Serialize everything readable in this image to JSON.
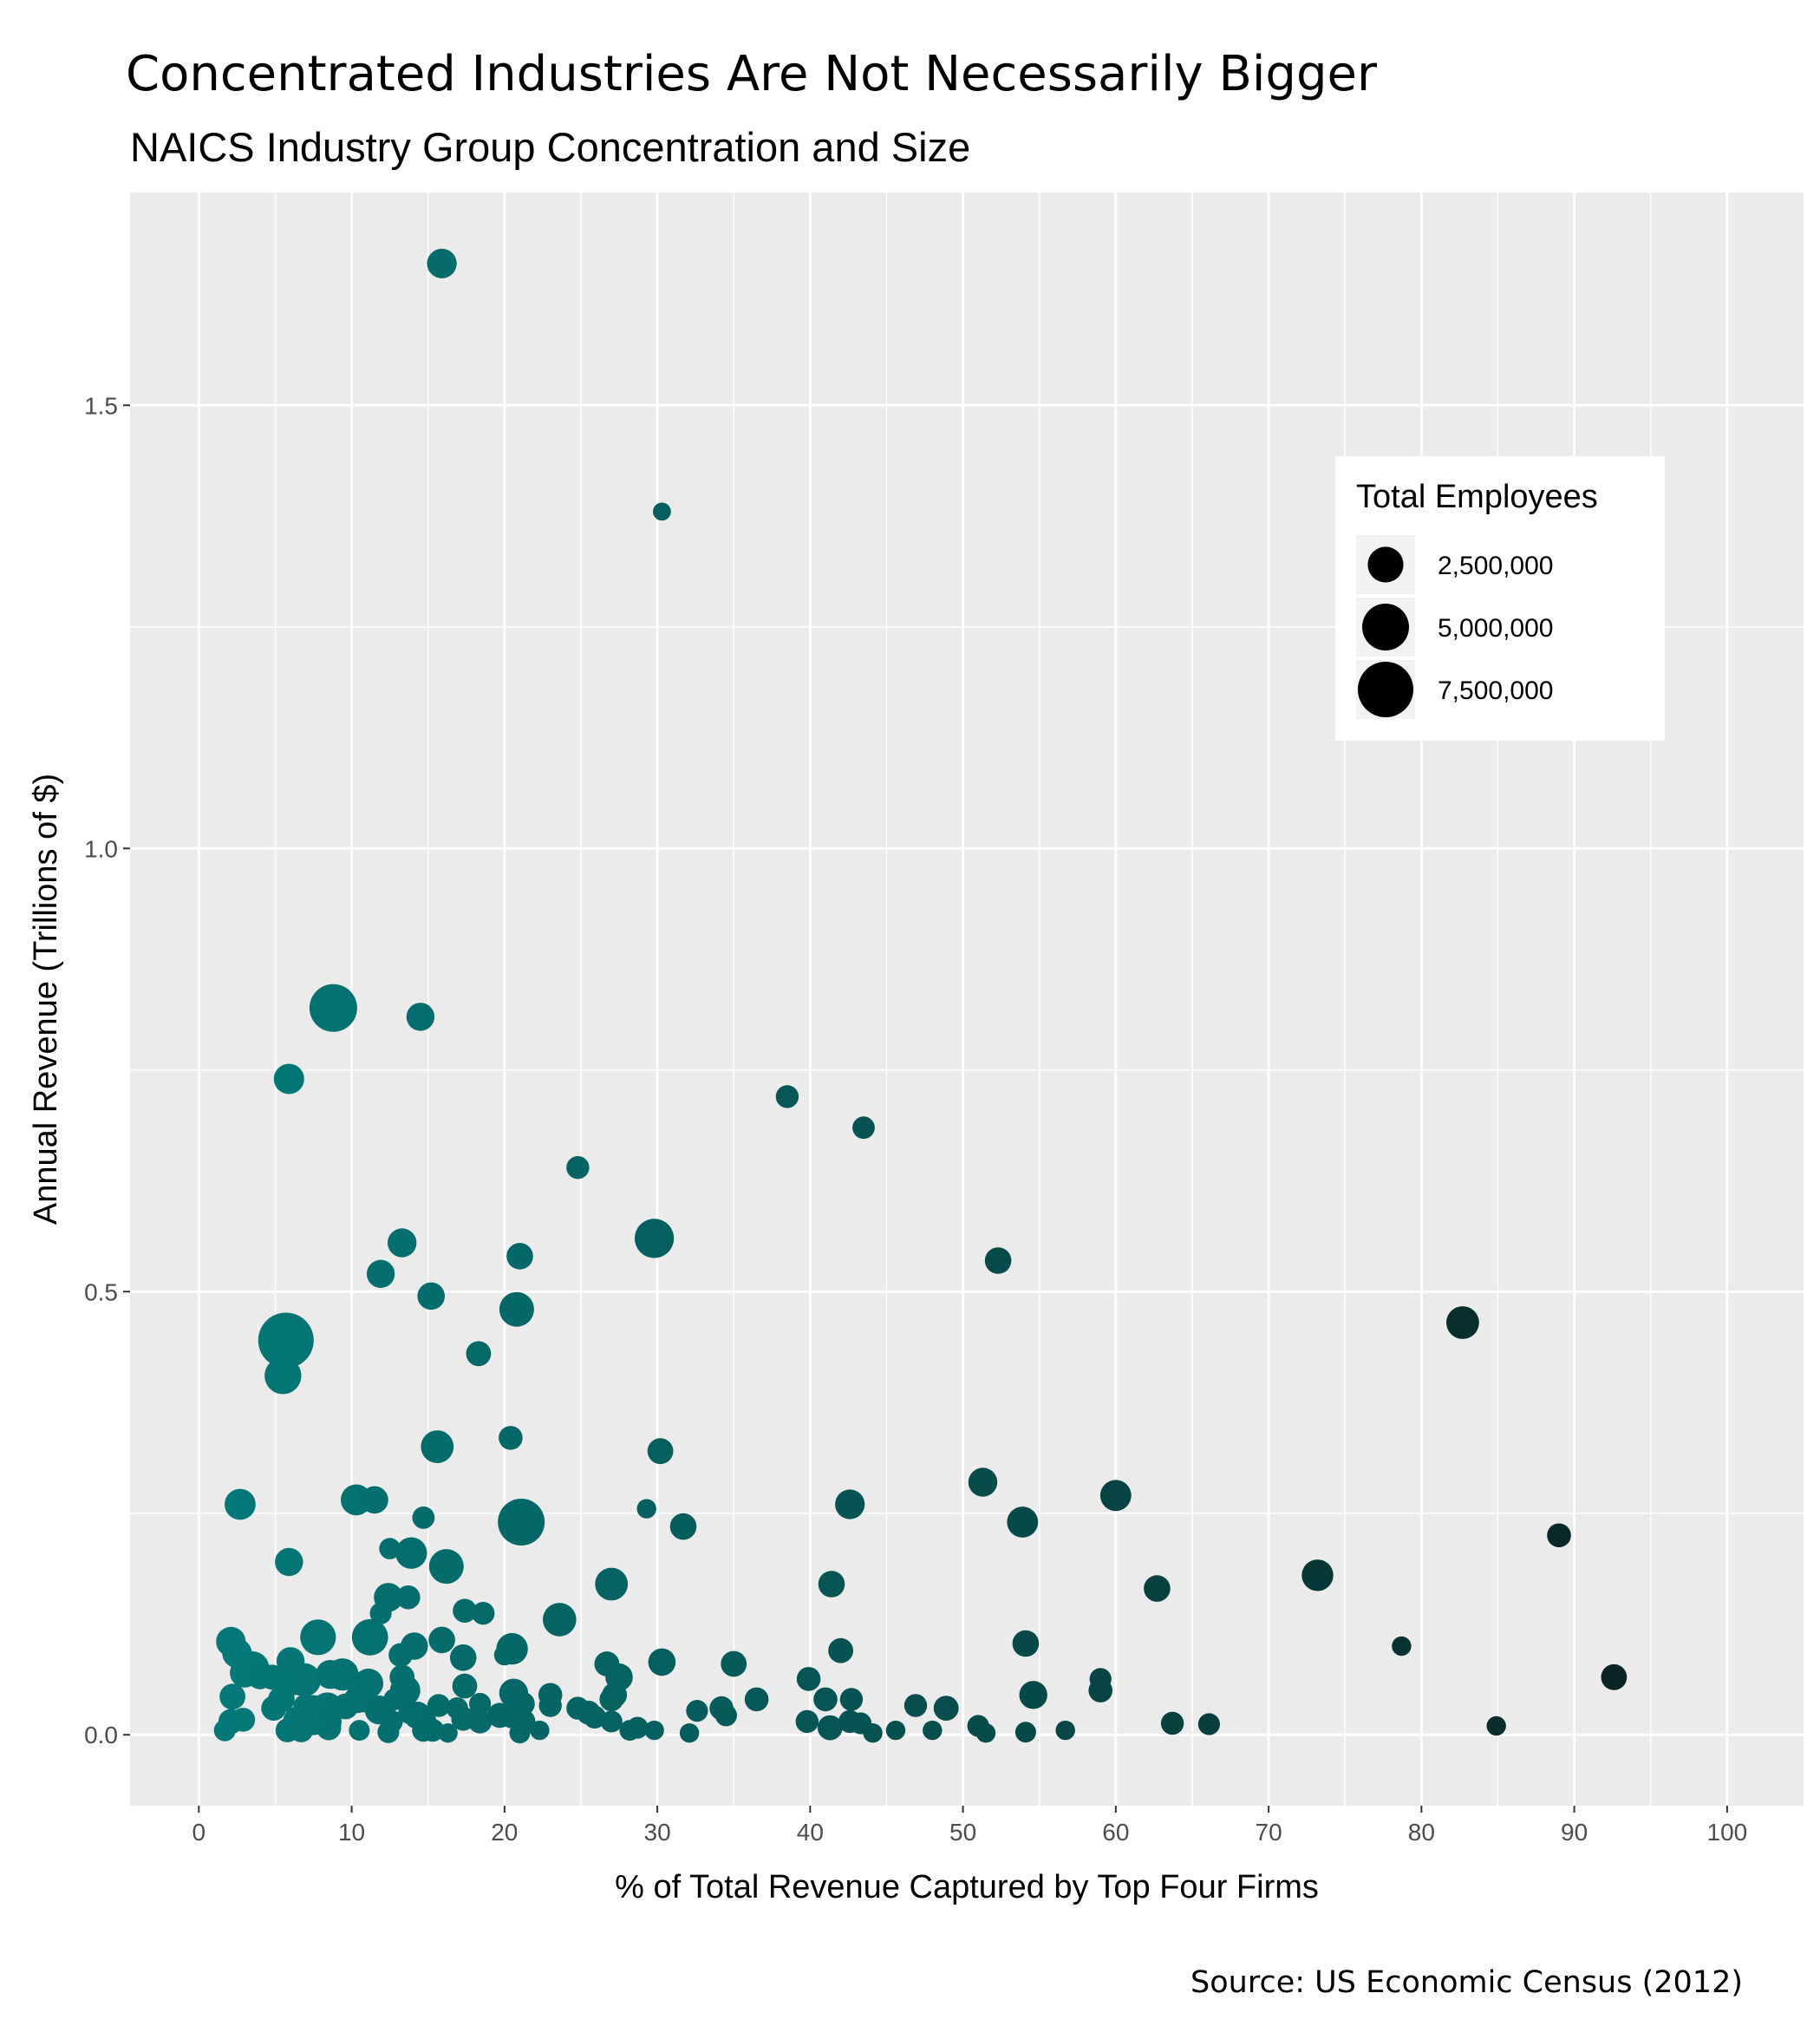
{
  "chart_data": {
    "type": "scatter",
    "title": "Concentrated Industries Are Not Necessarily Bigger",
    "subtitle": "NAICS Industry Group Concentration and Size",
    "xlabel": "% of Total Revenue Captured by Top Four Firms",
    "ylabel": "Annual Revenue (Trillions of $)",
    "caption": "Source: US Economic Census (2012)",
    "xlim": [
      -4.5,
      105
    ],
    "ylim": [
      -0.08,
      1.74
    ],
    "x_ticks": [
      0,
      10,
      20,
      30,
      40,
      50,
      60,
      70,
      80,
      90,
      100
    ],
    "x_tick_labels": [
      "0",
      "10",
      "20",
      "30",
      "40",
      "50",
      "60",
      "70",
      "80",
      "90",
      "100"
    ],
    "y_ticks": [
      0.0,
      0.5,
      1.0,
      1.5
    ],
    "y_tick_labels": [
      "0.0",
      "0.5",
      "1.0",
      "1.5"
    ],
    "grid": true,
    "background": "#ebebeb",
    "color_scale": {
      "low": "#047a7a",
      "high": "#0a1e1e",
      "by": "x"
    },
    "legend": {
      "title": "Total Employees",
      "position": "right-inside",
      "entries": [
        {
          "label": "2,500,000",
          "value": 2500000
        },
        {
          "label": "5,000,000",
          "value": 5000000
        },
        {
          "label": "7,500,000",
          "value": 7500000
        }
      ]
    },
    "points": [
      [
        15.9,
        1.66,
        1500000
      ],
      [
        30.3,
        1.38,
        300000
      ],
      [
        8.8,
        0.82,
        5200000
      ],
      [
        14.5,
        0.81,
        1300000
      ],
      [
        5.9,
        0.74,
        1600000
      ],
      [
        38.5,
        0.72,
        700000
      ],
      [
        43.5,
        0.685,
        650000
      ],
      [
        24.8,
        0.64,
        700000
      ],
      [
        29.8,
        0.56,
        3200000
      ],
      [
        13.3,
        0.555,
        1400000
      ],
      [
        21.0,
        0.54,
        1100000
      ],
      [
        52.3,
        0.535,
        1100000
      ],
      [
        11.9,
        0.52,
        1300000
      ],
      [
        15.2,
        0.495,
        1200000
      ],
      [
        20.8,
        0.48,
        2300000
      ],
      [
        82.7,
        0.465,
        2000000
      ],
      [
        5.7,
        0.445,
        7500000
      ],
      [
        18.3,
        0.43,
        900000
      ],
      [
        5.5,
        0.405,
        2700000
      ],
      [
        15.6,
        0.325,
        2000000
      ],
      [
        20.4,
        0.335,
        800000
      ],
      [
        30.2,
        0.32,
        1000000
      ],
      [
        51.3,
        0.285,
        1400000
      ],
      [
        60.0,
        0.27,
        1700000
      ],
      [
        2.7,
        0.26,
        1700000
      ],
      [
        10.3,
        0.265,
        1700000
      ],
      [
        11.5,
        0.265,
        1200000
      ],
      [
        42.6,
        0.26,
        1500000
      ],
      [
        29.3,
        0.255,
        400000
      ],
      [
        14.7,
        0.245,
        650000
      ],
      [
        21.1,
        0.24,
        5000000
      ],
      [
        53.9,
        0.24,
        1700000
      ],
      [
        31.7,
        0.235,
        1100000
      ],
      [
        89.0,
        0.225,
        800000
      ],
      [
        12.5,
        0.21,
        550000
      ],
      [
        13.9,
        0.205,
        1800000
      ],
      [
        5.9,
        0.195,
        1300000
      ],
      [
        16.2,
        0.19,
        2300000
      ],
      [
        73.2,
        0.18,
        1800000
      ],
      [
        27.0,
        0.17,
        2000000
      ],
      [
        41.4,
        0.17,
        1100000
      ],
      [
        62.7,
        0.165,
        1100000
      ],
      [
        12.4,
        0.155,
        1400000
      ],
      [
        13.7,
        0.155,
        800000
      ],
      [
        17.4,
        0.14,
        800000
      ],
      [
        18.6,
        0.137,
        700000
      ],
      [
        11.9,
        0.137,
        600000
      ],
      [
        23.6,
        0.13,
        2100000
      ],
      [
        7.8,
        0.11,
        2500000
      ],
      [
        11.2,
        0.11,
        2600000
      ],
      [
        2.1,
        0.105,
        1500000
      ],
      [
        14.1,
        0.1,
        1200000
      ],
      [
        15.9,
        0.107,
        1100000
      ],
      [
        20.5,
        0.097,
        1800000
      ],
      [
        20.0,
        0.09,
        500000
      ],
      [
        54.1,
        0.103,
        1100000
      ],
      [
        78.7,
        0.1,
        400000
      ],
      [
        2.5,
        0.092,
        1500000
      ],
      [
        42.0,
        0.095,
        900000
      ],
      [
        13.2,
        0.09,
        800000
      ],
      [
        17.3,
        0.087,
        1100000
      ],
      [
        6.0,
        0.083,
        1300000
      ],
      [
        30.3,
        0.082,
        1200000
      ],
      [
        35.0,
        0.08,
        1000000
      ],
      [
        26.7,
        0.08,
        900000
      ],
      [
        3.5,
        0.075,
        2200000
      ],
      [
        8.6,
        0.068,
        1400000
      ],
      [
        9.4,
        0.068,
        1900000
      ],
      [
        4.8,
        0.065,
        900000
      ],
      [
        6.9,
        0.062,
        2100000
      ],
      [
        6.2,
        0.06,
        1200000
      ],
      [
        27.5,
        0.065,
        1200000
      ],
      [
        39.9,
        0.063,
        800000
      ],
      [
        59.0,
        0.063,
        600000
      ],
      [
        92.6,
        0.065,
        1000000
      ],
      [
        11.1,
        0.058,
        1500000
      ],
      [
        13.5,
        0.05,
        1600000
      ],
      [
        13.3,
        0.065,
        900000
      ],
      [
        17.4,
        0.055,
        900000
      ],
      [
        20.6,
        0.047,
        1400000
      ],
      [
        23.0,
        0.045,
        800000
      ],
      [
        27.2,
        0.045,
        900000
      ],
      [
        54.6,
        0.045,
        1300000
      ],
      [
        59.0,
        0.05,
        800000
      ],
      [
        2.2,
        0.043,
        1000000
      ],
      [
        10.4,
        0.04,
        1200000
      ],
      [
        10.8,
        0.04,
        1000000
      ],
      [
        27.0,
        0.04,
        800000
      ],
      [
        41.0,
        0.04,
        800000
      ],
      [
        36.5,
        0.04,
        800000
      ],
      [
        42.7,
        0.04,
        700000
      ],
      [
        4.9,
        0.03,
        900000
      ],
      [
        8.4,
        0.03,
        1800000
      ],
      [
        7.5,
        0.028,
        1500000
      ],
      [
        11.8,
        0.028,
        1400000
      ],
      [
        12.0,
        0.028,
        1000000
      ],
      [
        15.7,
        0.033,
        700000
      ],
      [
        18.4,
        0.035,
        600000
      ],
      [
        21.2,
        0.035,
        800000
      ],
      [
        23.0,
        0.033,
        700000
      ],
      [
        24.8,
        0.03,
        700000
      ],
      [
        25.5,
        0.025,
        800000
      ],
      [
        34.2,
        0.03,
        800000
      ],
      [
        46.9,
        0.033,
        700000
      ],
      [
        48.9,
        0.03,
        900000
      ],
      [
        20.5,
        0.022,
        1000000
      ],
      [
        14.3,
        0.022,
        1200000
      ],
      [
        32.6,
        0.027,
        600000
      ],
      [
        34.5,
        0.022,
        600000
      ],
      [
        2.1,
        0.015,
        900000
      ],
      [
        2.9,
        0.017,
        800000
      ],
      [
        6.5,
        0.015,
        1600000
      ],
      [
        7.5,
        0.013,
        800000
      ],
      [
        8.5,
        0.015,
        1000000
      ],
      [
        12.6,
        0.015,
        700000
      ],
      [
        14.7,
        0.015,
        1000000
      ],
      [
        17.3,
        0.018,
        800000
      ],
      [
        18.4,
        0.015,
        800000
      ],
      [
        21.2,
        0.015,
        900000
      ],
      [
        25.9,
        0.02,
        700000
      ],
      [
        27.0,
        0.015,
        600000
      ],
      [
        39.8,
        0.015,
        700000
      ],
      [
        41.3,
        0.008,
        900000
      ],
      [
        42.6,
        0.015,
        700000
      ],
      [
        43.3,
        0.013,
        600000
      ],
      [
        51.0,
        0.01,
        600000
      ],
      [
        63.7,
        0.013,
        700000
      ],
      [
        66.1,
        0.012,
        600000
      ],
      [
        84.9,
        0.01,
        400000
      ],
      [
        1.7,
        0.005,
        600000
      ],
      [
        5.8,
        0.005,
        800000
      ],
      [
        6.7,
        0.005,
        800000
      ],
      [
        8.5,
        0.008,
        900000
      ],
      [
        10.5,
        0.005,
        500000
      ],
      [
        12.4,
        0.003,
        600000
      ],
      [
        14.7,
        0.005,
        700000
      ],
      [
        15.3,
        0.005,
        700000
      ],
      [
        16.3,
        0.002,
        400000
      ],
      [
        21.0,
        0.002,
        500000
      ],
      [
        22.3,
        0.005,
        400000
      ],
      [
        28.7,
        0.008,
        600000
      ],
      [
        28.2,
        0.005,
        500000
      ],
      [
        29.8,
        0.005,
        400000
      ],
      [
        32.1,
        0.002,
        400000
      ],
      [
        44.1,
        0.002,
        400000
      ],
      [
        45.6,
        0.005,
        400000
      ],
      [
        48.0,
        0.005,
        400000
      ],
      [
        51.5,
        0.002,
        400000
      ],
      [
        54.1,
        0.003,
        500000
      ],
      [
        56.7,
        0.005,
        400000
      ],
      [
        19.7,
        0.022,
        900000
      ],
      [
        13.8,
        0.025,
        700000
      ],
      [
        4.0,
        0.066,
        1000000
      ],
      [
        3.0,
        0.07,
        1500000
      ],
      [
        7.0,
        0.032,
        900000
      ],
      [
        9.6,
        0.032,
        1000000
      ],
      [
        12.8,
        0.04,
        600000
      ],
      [
        16.9,
        0.03,
        600000
      ],
      [
        5.4,
        0.04,
        1100000
      ]
    ]
  }
}
